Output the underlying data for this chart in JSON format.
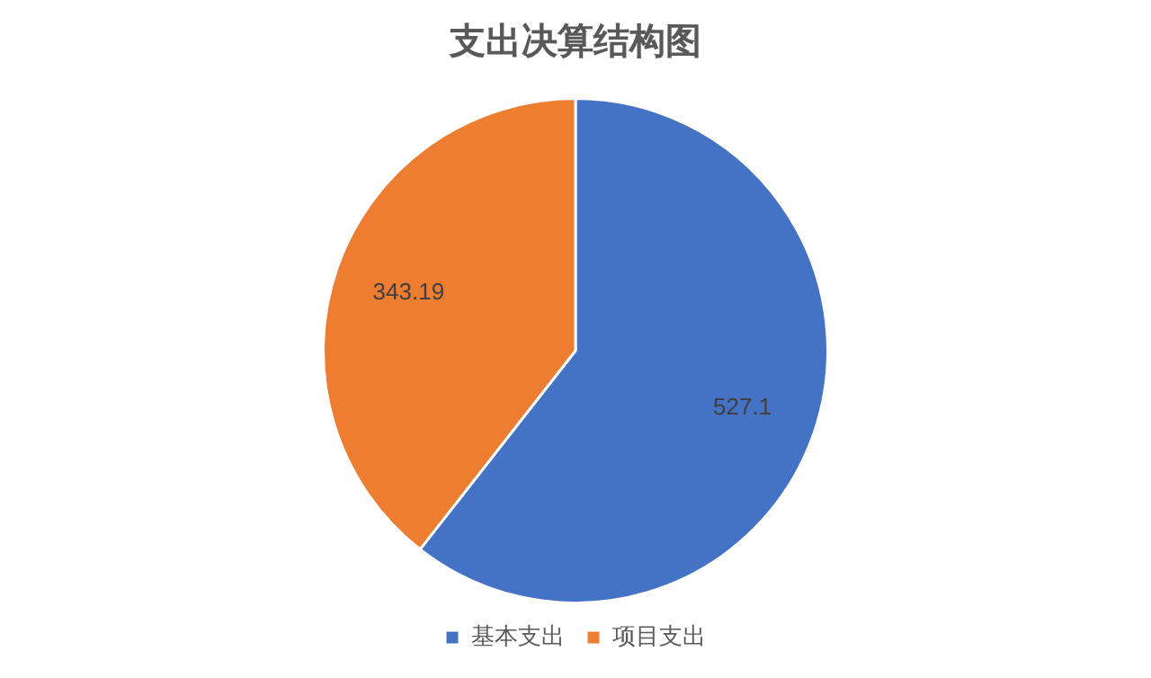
{
  "chart_data": {
    "type": "pie",
    "title": "支出决算结构图",
    "categories": [
      "基本支出",
      "项目支出"
    ],
    "values": [
      527.1,
      343.19
    ],
    "colors": [
      "#4472c4",
      "#ed7d31"
    ],
    "data_labels": true,
    "legend": "bottom"
  }
}
